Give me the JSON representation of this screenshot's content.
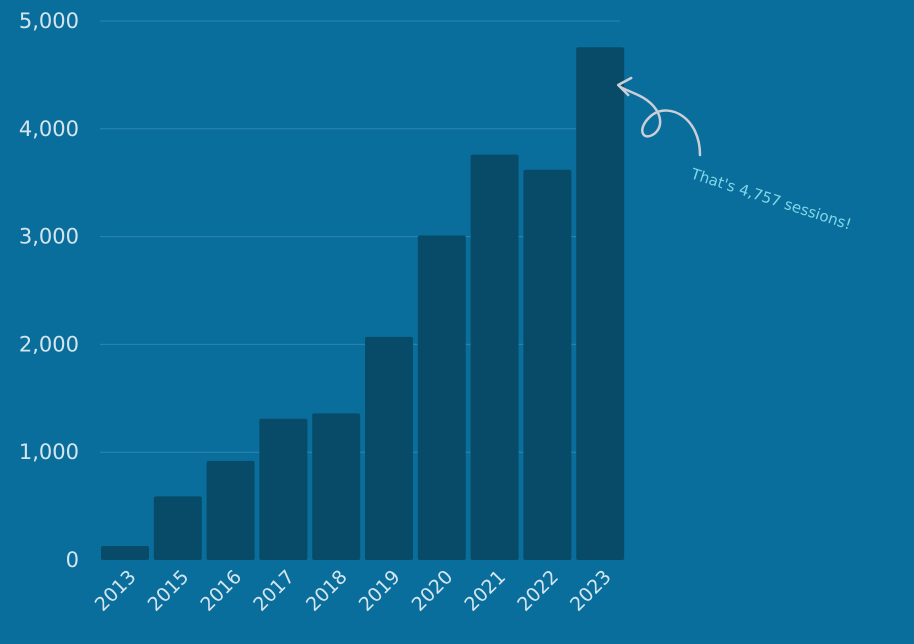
{
  "chart_data": {
    "type": "bar",
    "categories": [
      "2013",
      "2015",
      "2016",
      "2017",
      "2018",
      "2019",
      "2020",
      "2021",
      "2022",
      "2023"
    ],
    "values": [
      130,
      590,
      920,
      1310,
      1360,
      2070,
      3010,
      3760,
      3620,
      4757
    ],
    "ylim": [
      0,
      5000
    ],
    "yticks": [
      0,
      1000,
      2000,
      3000,
      4000,
      5000
    ],
    "ytick_labels": [
      "0",
      "1,000",
      "2,000",
      "3,000",
      "4,000",
      "5,000"
    ],
    "grid": true,
    "annotation": {
      "text": "That's 4,757 sessions!",
      "target_category": "2023",
      "target_value": 4757
    }
  },
  "colors": {
    "background": "#0A6E9C",
    "bar": "#074B68",
    "grid": "#2A86B0",
    "tick_text": "#D4E5EE",
    "annotation_text": "#7FD6E6",
    "arrow": "#C9CFD6"
  }
}
